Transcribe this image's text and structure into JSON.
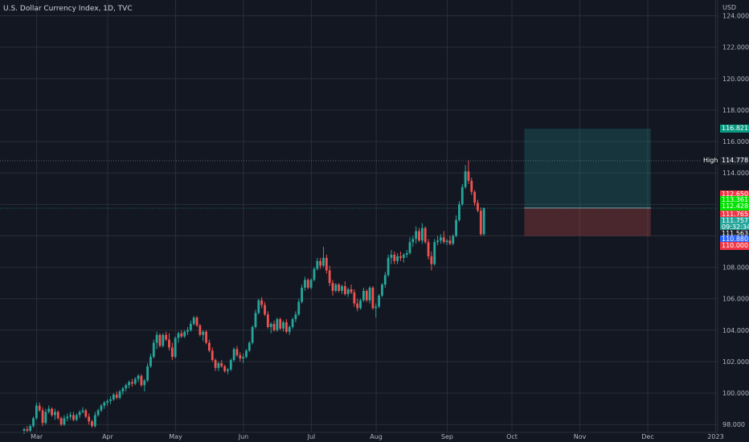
{
  "title": "U.S. Dollar Currency Index, 1D, TVC",
  "currency": "USD",
  "colors": {
    "up": "#26a69a",
    "down": "#ef5350",
    "background": "#131722",
    "grid": "#2a2e39"
  },
  "chart_data": {
    "type": "candlestick",
    "grid": true,
    "ylim": [
      97.5,
      125.0
    ],
    "y_ticks": [
      "98.000",
      "100.000",
      "102.000",
      "104.000",
      "106.000",
      "108.000",
      "110.000",
      "112.000",
      "114.000",
      "116.000",
      "118.000",
      "120.000",
      "122.000",
      "124.000"
    ],
    "x_ticks": [
      {
        "label": "Mar",
        "idx": 2
      },
      {
        "label": "Apr",
        "idx": 25
      },
      {
        "label": "May",
        "idx": 47
      },
      {
        "label": "Jun",
        "idx": 69
      },
      {
        "label": "Jul",
        "idx": 91
      },
      {
        "label": "Aug",
        "idx": 112
      },
      {
        "label": "Sep",
        "idx": 135
      },
      {
        "label": "Oct",
        "idx": 156
      },
      {
        "label": "Nov",
        "idx": 178
      },
      {
        "label": "Dec",
        "idx": 200
      },
      {
        "label": "2023",
        "idx": 222
      }
    ],
    "total_slots": 223,
    "candles": [
      [
        97.6,
        97.8,
        97.4,
        97.7
      ],
      [
        97.7,
        97.9,
        97.5,
        97.6
      ],
      [
        97.6,
        98.0,
        97.5,
        97.9
      ],
      [
        97.9,
        98.5,
        97.8,
        98.4
      ],
      [
        98.4,
        99.4,
        98.3,
        99.2
      ],
      [
        99.2,
        99.4,
        98.8,
        98.9
      ],
      [
        98.9,
        99.1,
        97.9,
        98.1
      ],
      [
        98.1,
        99.0,
        98.0,
        98.8
      ],
      [
        98.8,
        99.2,
        98.7,
        99.0
      ],
      [
        99.0,
        99.1,
        98.5,
        98.6
      ],
      [
        98.6,
        99.0,
        98.3,
        98.8
      ],
      [
        98.8,
        98.9,
        98.3,
        98.4
      ],
      [
        98.4,
        98.5,
        97.9,
        98.0
      ],
      [
        98.0,
        98.6,
        97.9,
        98.4
      ],
      [
        98.4,
        98.7,
        98.2,
        98.5
      ],
      [
        98.5,
        98.8,
        98.3,
        98.6
      ],
      [
        98.6,
        98.8,
        98.2,
        98.3
      ],
      [
        98.3,
        98.7,
        98.2,
        98.6
      ],
      [
        98.6,
        98.9,
        98.4,
        98.8
      ],
      [
        98.8,
        99.1,
        98.7,
        98.9
      ],
      [
        98.9,
        99.0,
        98.4,
        98.5
      ],
      [
        98.5,
        98.7,
        98.0,
        98.2
      ],
      [
        98.2,
        98.3,
        97.8,
        97.9
      ],
      [
        97.9,
        98.8,
        97.8,
        98.6
      ],
      [
        98.6,
        99.0,
        98.5,
        98.9
      ],
      [
        98.9,
        99.3,
        98.8,
        99.2
      ],
      [
        99.2,
        99.5,
        99.0,
        99.4
      ],
      [
        99.4,
        99.6,
        99.2,
        99.5
      ],
      [
        99.5,
        99.8,
        99.3,
        99.6
      ],
      [
        99.6,
        100.0,
        99.5,
        99.9
      ],
      [
        99.9,
        100.1,
        99.6,
        99.7
      ],
      [
        99.7,
        100.2,
        99.6,
        100.1
      ],
      [
        100.1,
        100.4,
        99.9,
        100.3
      ],
      [
        100.3,
        100.6,
        100.1,
        100.5
      ],
      [
        100.5,
        100.8,
        100.3,
        100.7
      ],
      [
        100.7,
        100.9,
        100.4,
        100.6
      ],
      [
        100.6,
        101.0,
        100.5,
        100.9
      ],
      [
        100.9,
        101.2,
        100.7,
        101.1
      ],
      [
        101.1,
        101.2,
        100.4,
        100.5
      ],
      [
        100.5,
        100.9,
        100.1,
        100.8
      ],
      [
        100.8,
        101.9,
        100.7,
        101.7
      ],
      [
        101.7,
        102.5,
        101.6,
        102.3
      ],
      [
        102.3,
        103.4,
        102.2,
        103.2
      ],
      [
        103.2,
        103.9,
        102.8,
        103.7
      ],
      [
        103.7,
        103.8,
        102.9,
        103.0
      ],
      [
        103.0,
        103.8,
        102.9,
        103.7
      ],
      [
        103.7,
        103.9,
        103.3,
        103.4
      ],
      [
        103.4,
        103.8,
        102.7,
        102.9
      ],
      [
        102.9,
        103.2,
        102.1,
        102.3
      ],
      [
        102.3,
        103.6,
        102.2,
        103.5
      ],
      [
        103.5,
        103.9,
        103.2,
        103.8
      ],
      [
        103.8,
        104.0,
        103.5,
        103.6
      ],
      [
        103.6,
        104.0,
        103.5,
        103.9
      ],
      [
        103.9,
        104.2,
        103.7,
        104.0
      ],
      [
        104.0,
        104.6,
        103.9,
        104.4
      ],
      [
        104.4,
        104.9,
        104.3,
        104.8
      ],
      [
        104.8,
        104.9,
        104.2,
        104.3
      ],
      [
        104.3,
        104.4,
        103.6,
        103.7
      ],
      [
        103.7,
        104.0,
        103.3,
        103.9
      ],
      [
        103.9,
        104.0,
        103.1,
        103.2
      ],
      [
        103.2,
        103.4,
        102.6,
        102.7
      ],
      [
        102.7,
        102.9,
        102.0,
        102.1
      ],
      [
        102.1,
        102.2,
        101.4,
        101.6
      ],
      [
        101.6,
        102.0,
        101.4,
        101.9
      ],
      [
        101.9,
        102.1,
        101.6,
        101.7
      ],
      [
        101.7,
        101.8,
        101.3,
        101.4
      ],
      [
        101.4,
        101.6,
        101.2,
        101.5
      ],
      [
        101.5,
        102.2,
        101.4,
        102.1
      ],
      [
        102.1,
        102.9,
        102.0,
        102.8
      ],
      [
        102.8,
        103.0,
        102.3,
        102.4
      ],
      [
        102.4,
        102.6,
        102.0,
        102.2
      ],
      [
        102.2,
        102.5,
        101.9,
        102.3
      ],
      [
        102.3,
        102.8,
        102.2,
        102.7
      ],
      [
        102.7,
        103.3,
        102.6,
        103.2
      ],
      [
        103.2,
        104.3,
        103.1,
        104.2
      ],
      [
        104.2,
        105.3,
        104.1,
        105.1
      ],
      [
        105.1,
        106.0,
        105.0,
        105.9
      ],
      [
        105.9,
        106.1,
        105.4,
        105.6
      ],
      [
        105.6,
        105.8,
        104.9,
        105.0
      ],
      [
        105.0,
        105.2,
        104.1,
        104.2
      ],
      [
        104.2,
        104.5,
        103.8,
        104.4
      ],
      [
        104.4,
        104.6,
        103.9,
        104.0
      ],
      [
        104.0,
        104.8,
        103.9,
        104.7
      ],
      [
        104.7,
        104.8,
        104.0,
        104.1
      ],
      [
        104.1,
        104.6,
        103.9,
        104.5
      ],
      [
        104.5,
        104.7,
        103.8,
        103.9
      ],
      [
        103.9,
        104.3,
        103.7,
        104.2
      ],
      [
        104.2,
        104.8,
        104.1,
        104.7
      ],
      [
        104.7,
        105.2,
        104.5,
        105.0
      ],
      [
        105.0,
        106.0,
        104.9,
        105.8
      ],
      [
        105.8,
        106.9,
        105.7,
        106.7
      ],
      [
        106.7,
        107.4,
        106.5,
        107.2
      ],
      [
        107.2,
        107.3,
        106.6,
        106.7
      ],
      [
        106.7,
        107.3,
        106.6,
        107.2
      ],
      [
        107.2,
        108.0,
        107.1,
        107.9
      ],
      [
        107.9,
        108.6,
        107.8,
        108.4
      ],
      [
        108.4,
        108.6,
        107.9,
        108.1
      ],
      [
        108.1,
        109.3,
        108.0,
        108.6
      ],
      [
        108.6,
        108.8,
        107.6,
        107.8
      ],
      [
        107.8,
        108.1,
        106.8,
        107.0
      ],
      [
        107.0,
        107.2,
        106.2,
        106.5
      ],
      [
        106.5,
        107.0,
        106.4,
        106.9
      ],
      [
        106.9,
        107.0,
        106.4,
        106.5
      ],
      [
        106.5,
        106.9,
        106.3,
        106.8
      ],
      [
        106.8,
        107.1,
        106.2,
        106.3
      ],
      [
        106.3,
        106.7,
        106.1,
        106.6
      ],
      [
        106.6,
        106.9,
        106.3,
        106.4
      ],
      [
        106.4,
        106.6,
        105.5,
        105.7
      ],
      [
        105.7,
        106.0,
        105.2,
        105.4
      ],
      [
        105.4,
        106.0,
        105.3,
        105.9
      ],
      [
        105.9,
        106.7,
        105.8,
        106.5
      ],
      [
        106.5,
        106.6,
        105.8,
        105.9
      ],
      [
        105.9,
        106.8,
        105.7,
        106.7
      ],
      [
        106.7,
        106.8,
        105.3,
        105.4
      ],
      [
        105.4,
        105.7,
        104.8,
        105.5
      ],
      [
        105.5,
        106.3,
        105.4,
        106.2
      ],
      [
        106.2,
        107.0,
        106.1,
        106.9
      ],
      [
        106.9,
        107.7,
        106.7,
        107.5
      ],
      [
        107.5,
        108.8,
        107.4,
        108.6
      ],
      [
        108.6,
        109.1,
        108.2,
        108.8
      ],
      [
        108.8,
        109.0,
        108.2,
        108.4
      ],
      [
        108.4,
        108.9,
        108.2,
        108.7
      ],
      [
        108.7,
        109.0,
        108.4,
        108.6
      ],
      [
        108.6,
        108.9,
        108.3,
        108.8
      ],
      [
        108.8,
        109.1,
        108.6,
        108.9
      ],
      [
        108.9,
        109.9,
        108.8,
        109.6
      ],
      [
        109.6,
        110.0,
        109.3,
        109.8
      ],
      [
        109.8,
        110.6,
        109.5,
        110.3
      ],
      [
        110.3,
        110.5,
        109.6,
        109.7
      ],
      [
        109.7,
        110.8,
        109.5,
        110.5
      ],
      [
        110.5,
        110.6,
        109.5,
        109.6
      ],
      [
        109.6,
        109.8,
        108.5,
        108.7
      ],
      [
        108.7,
        109.0,
        107.8,
        108.2
      ],
      [
        108.2,
        109.8,
        108.1,
        109.6
      ],
      [
        109.6,
        110.0,
        109.4,
        109.7
      ],
      [
        109.7,
        110.1,
        109.5,
        109.9
      ],
      [
        109.9,
        110.3,
        109.5,
        109.6
      ],
      [
        109.6,
        109.8,
        109.4,
        109.7
      ],
      [
        109.7,
        110.0,
        109.4,
        109.5
      ],
      [
        109.5,
        110.1,
        109.4,
        110.0
      ],
      [
        110.0,
        111.3,
        109.9,
        111.0
      ],
      [
        111.0,
        112.2,
        110.9,
        112.0
      ],
      [
        112.0,
        113.3,
        111.9,
        113.1
      ],
      [
        113.1,
        114.5,
        113.0,
        114.1
      ],
      [
        114.1,
        114.8,
        113.3,
        113.5
      ],
      [
        113.5,
        113.7,
        112.6,
        112.8
      ],
      [
        112.8,
        112.9,
        111.9,
        112.1
      ],
      [
        112.1,
        112.3,
        111.5,
        111.6
      ],
      [
        111.6,
        111.8,
        110.0,
        110.1
      ],
      [
        110.1,
        111.8,
        110.0,
        111.757
      ]
    ],
    "position": {
      "entry": 111.765,
      "stop": 110.0,
      "target": 116.821,
      "start_idx": 160,
      "end_idx": 201
    },
    "high": {
      "label": "High",
      "value": "114.778",
      "y": 114.778
    },
    "last_price": 111.757,
    "price_tags": [
      {
        "value": "116.821",
        "y": 116.821,
        "color": "#089981"
      },
      {
        "value": "112.650",
        "y": 112.65,
        "color": "#f23645"
      },
      {
        "value": "113.361",
        "y": 112.25,
        "color": "#00e500"
      },
      {
        "value": "112.428",
        "y": 111.88,
        "color": "#00e500"
      },
      {
        "value": "111.765",
        "y": 111.35,
        "color": "#f23645"
      },
      {
        "value": "111.757",
        "y": 110.95,
        "color": "#26a69a"
      },
      {
        "value": "09:32:34",
        "y": 110.55,
        "color": "#26a69a"
      },
      {
        "value": "111.563",
        "y": 110.15,
        "color": "#1e222d"
      },
      {
        "value": "110.880",
        "y": 109.75,
        "color": "#2962ff"
      },
      {
        "value": "110.000",
        "y": 109.35,
        "color": "#f23645"
      }
    ]
  }
}
